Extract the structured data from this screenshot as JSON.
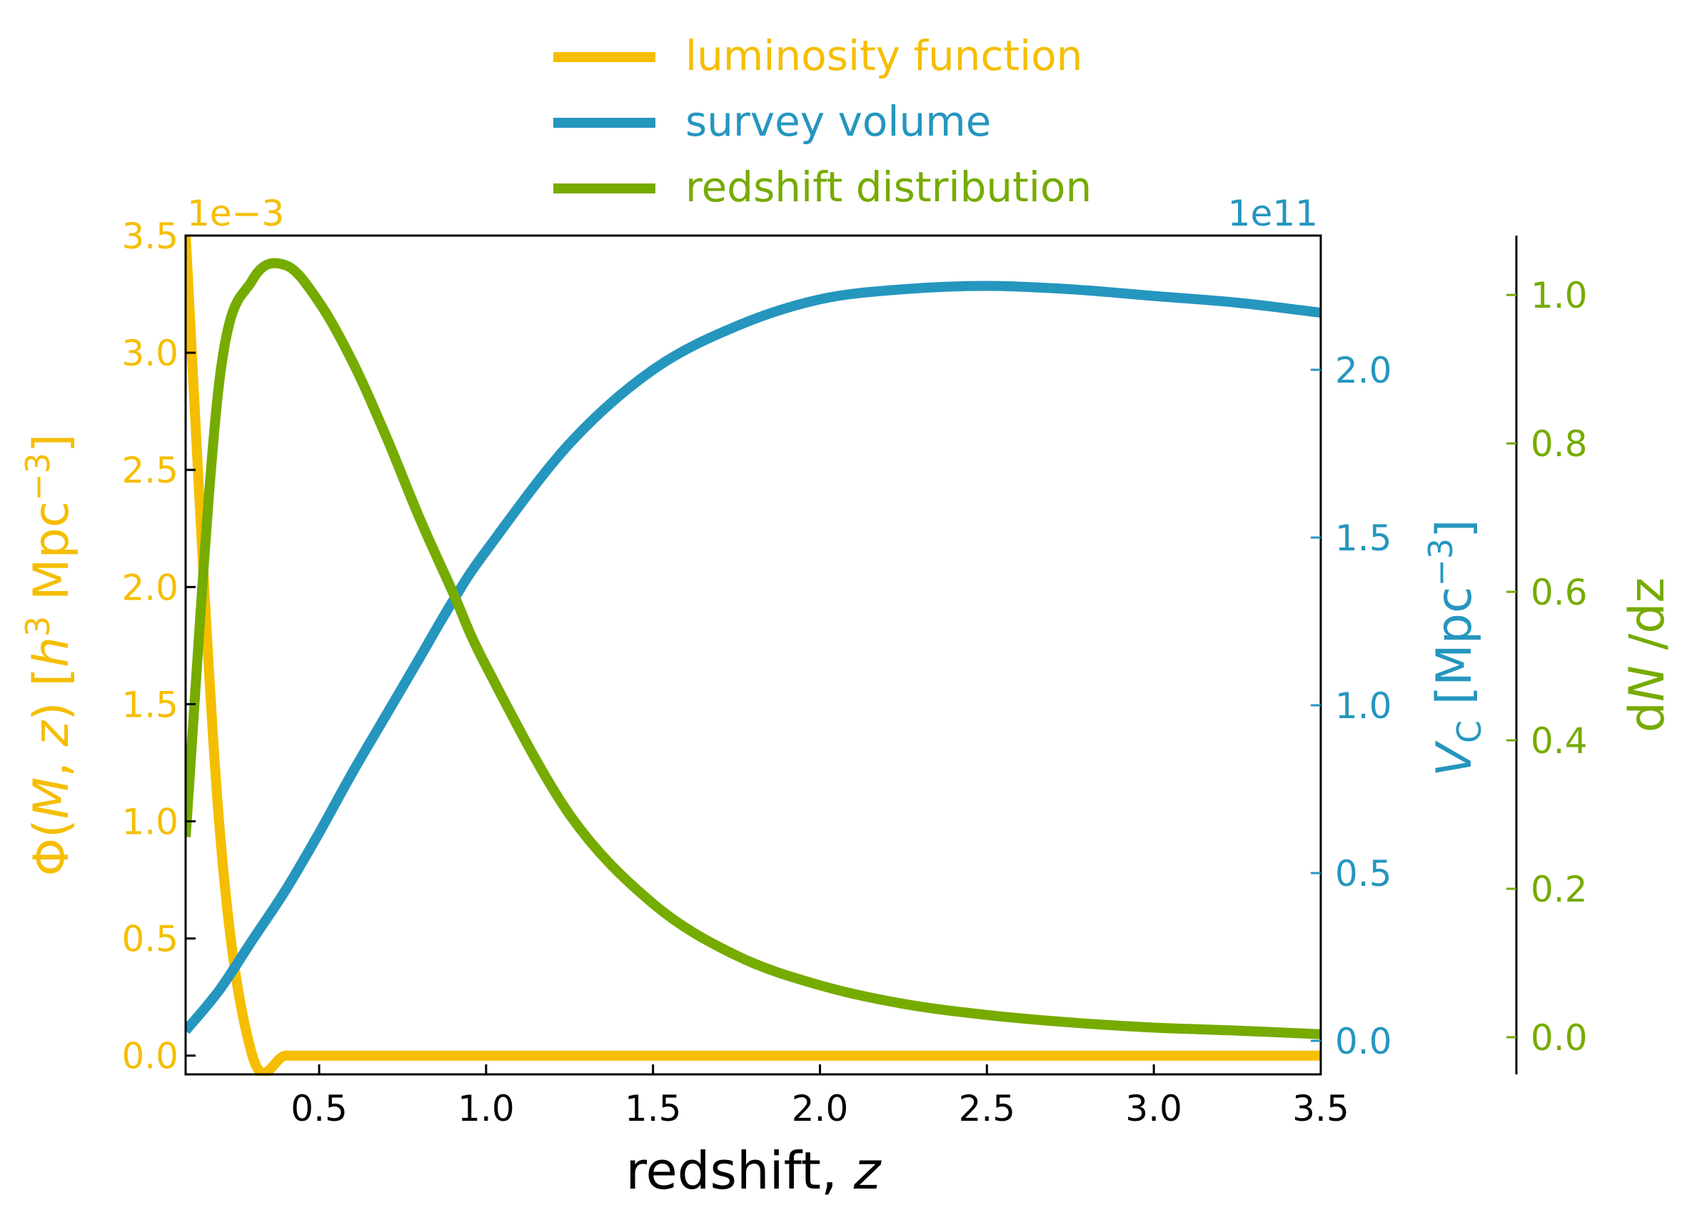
{
  "chart_data": {
    "type": "line",
    "x": [
      0.1,
      0.2,
      0.3,
      0.4,
      0.5,
      0.6,
      0.7,
      0.8,
      0.9,
      1.0,
      1.25,
      1.5,
      1.75,
      2.0,
      2.25,
      2.5,
      2.75,
      3.0,
      3.25,
      3.5
    ],
    "xlabel": "redshift, ",
    "xlabel_italic": "z",
    "xlim": [
      0.1,
      3.5
    ],
    "xticks": [
      "0.5",
      "1.0",
      "1.5",
      "2.0",
      "2.5",
      "3.0",
      "3.5"
    ],
    "legend_position": "top-center",
    "series": [
      {
        "name": "luminosity function",
        "color": "#f5be00",
        "axis": "left",
        "values": [
          3.5,
          1.0,
          0.0,
          0.0,
          0.0,
          0.0,
          0.0,
          0.0,
          0.0,
          0.0,
          0.0,
          0.0,
          0.0,
          0.0,
          0.0,
          0.0,
          0.0,
          0.0,
          0.0,
          0.0
        ]
      },
      {
        "name": "survey volume",
        "color": "#2596be",
        "axis": "right",
        "values": [
          0.03,
          0.15,
          0.3,
          0.45,
          0.62,
          0.8,
          0.97,
          1.14,
          1.31,
          1.46,
          1.78,
          2.0,
          2.13,
          2.21,
          2.24,
          2.25,
          2.24,
          2.22,
          2.2,
          2.17
        ]
      },
      {
        "name": "redshift distribution",
        "color": "#76ab00",
        "axis": "far-right",
        "values": [
          0.27,
          0.88,
          1.02,
          1.04,
          0.99,
          0.91,
          0.81,
          0.7,
          0.6,
          0.5,
          0.3,
          0.18,
          0.11,
          0.07,
          0.045,
          0.03,
          0.02,
          0.013,
          0.009,
          0.004
        ]
      }
    ],
    "axes": {
      "left": {
        "label_prefix": "Φ(",
        "label_m": "M",
        "label_sep": ", ",
        "label_z": "z",
        "label_mid": ") [",
        "label_h": "h",
        "label_exp1": "3",
        "label_unit": " Mpc",
        "label_exp2": "−3",
        "label_close": "]",
        "offset_text": "1e−3",
        "ylim": [
          -0.08,
          3.5
        ],
        "ticks": [
          "0.0",
          "0.5",
          "1.0",
          "1.5",
          "2.0",
          "2.5",
          "3.0",
          "3.5"
        ],
        "color": "#f5be00"
      },
      "right": {
        "label_v": "V",
        "label_sub": "C",
        "label_unit": " [Mpc",
        "label_exp": "−3",
        "label_close": "]",
        "offset_text": "1e11",
        "ylim": [
          -0.1,
          2.4
        ],
        "ticks": [
          "0.0",
          "0.5",
          "1.0",
          "1.5",
          "2.0"
        ],
        "color": "#2596be"
      },
      "far_right": {
        "label_pre": "d",
        "label_n": "N",
        "label_post": " /dz",
        "ylim": [
          -0.05,
          1.08
        ],
        "ticks": [
          "0.0",
          "0.2",
          "0.4",
          "0.6",
          "0.8",
          "1.0"
        ],
        "color": "#76ab00"
      }
    }
  }
}
